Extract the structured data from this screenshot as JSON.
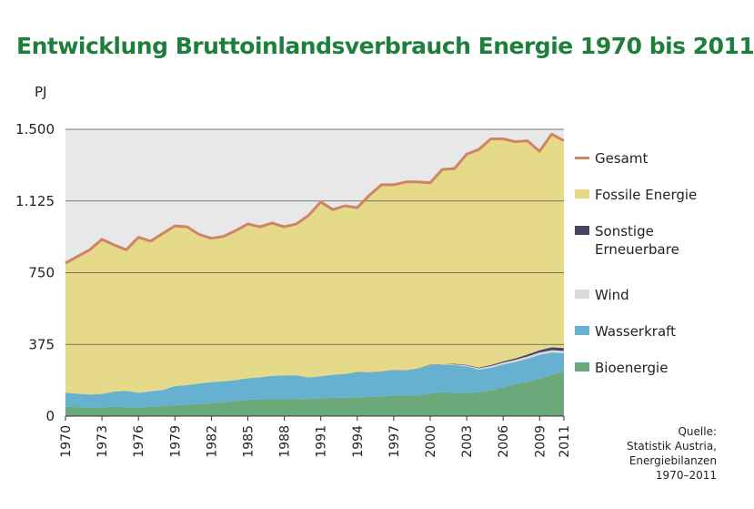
{
  "title": "Entwicklung Bruttoinlandsverbrauch Energie 1970 bis 2011",
  "source": {
    "lines": [
      "Quelle:",
      "Statistik Austria,",
      "Energiebilanzen",
      "1970–2011"
    ]
  },
  "colors": {
    "title": "#1e7f3c",
    "chart_bg": "#e8e8e8",
    "gridline": "#555555",
    "gesamt": "#d08466",
    "fossile": "#e5d98a",
    "sonstige": "#4b4469",
    "wind": "#d9d9d9",
    "wasserkraft": "#66b1cf",
    "bioenergie": "#6ba97a"
  },
  "chart_data": {
    "type": "area",
    "ylabel": "PJ",
    "xlabel": "",
    "ylim": [
      0,
      1500
    ],
    "yticks": [
      0,
      375,
      750,
      1125,
      1500
    ],
    "ytick_labels": [
      "0",
      "375",
      "750",
      "1.125",
      "1.500"
    ],
    "xtick_labels": [
      "1970",
      "1973",
      "1976",
      "1979",
      "1982",
      "1985",
      "1988",
      "1991",
      "1994",
      "1997",
      "2000",
      "2003",
      "2006",
      "2009",
      "2011"
    ],
    "grid": true,
    "legend_position": "right",
    "x": [
      1970,
      1971,
      1972,
      1973,
      1974,
      1975,
      1976,
      1977,
      1978,
      1979,
      1980,
      1981,
      1982,
      1983,
      1984,
      1985,
      1986,
      1987,
      1988,
      1989,
      1990,
      1991,
      1992,
      1993,
      1994,
      1995,
      1996,
      1997,
      1998,
      1999,
      2000,
      2001,
      2002,
      2003,
      2004,
      2005,
      2006,
      2007,
      2008,
      2009,
      2010,
      2011
    ],
    "stack_order": [
      "Bioenergie",
      "Wasserkraft",
      "Wind",
      "Sonstige Erneuerbare"
    ],
    "series": [
      {
        "name": "Bioenergie",
        "color_key": "bioenergie",
        "values": [
          48,
          47,
          45,
          46,
          48,
          47,
          44,
          48,
          52,
          57,
          60,
          63,
          68,
          72,
          80,
          86,
          88,
          88,
          88,
          88,
          90,
          93,
          96,
          96,
          98,
          100,
          103,
          108,
          108,
          108,
          118,
          125,
          122,
          120,
          125,
          135,
          150,
          165,
          180,
          195,
          215,
          235
        ]
      },
      {
        "name": "Wasserkraft",
        "color_key": "wasserkraft",
        "values": [
          75,
          70,
          68,
          70,
          80,
          85,
          78,
          82,
          85,
          100,
          102,
          108,
          110,
          110,
          108,
          112,
          115,
          122,
          125,
          125,
          112,
          115,
          120,
          125,
          132,
          128,
          130,
          132,
          130,
          138,
          148,
          142,
          145,
          140,
          118,
          118,
          120,
          118,
          120,
          125,
          118,
          95
        ]
      },
      {
        "name": "Wind",
        "color_key": "wind",
        "values": [
          0,
          0,
          0,
          0,
          0,
          0,
          0,
          0,
          0,
          0,
          0,
          0,
          0,
          0,
          0,
          0,
          0,
          0,
          0,
          0,
          0,
          0,
          0,
          0,
          0,
          0,
          0,
          0,
          0,
          1,
          2,
          3,
          4,
          5,
          7,
          9,
          10,
          11,
          12,
          13,
          12,
          11
        ]
      },
      {
        "name": "Sonstige Erneuerbare",
        "color_key": "sonstige",
        "values": [
          0,
          0,
          0,
          0,
          0,
          0,
          0,
          0,
          0,
          0,
          0,
          0,
          0,
          0,
          0,
          0,
          0,
          0,
          0,
          0,
          0,
          0,
          0,
          0,
          1,
          1,
          1,
          1,
          1,
          2,
          2,
          2,
          3,
          3,
          4,
          5,
          6,
          8,
          10,
          12,
          15,
          15
        ]
      },
      {
        "name": "Gesamt",
        "color_key": "gesamt",
        "kind": "line",
        "values": [
          800,
          835,
          870,
          925,
          895,
          870,
          935,
          915,
          955,
          995,
          990,
          950,
          930,
          940,
          970,
          1005,
          990,
          1010,
          990,
          1005,
          1050,
          1120,
          1080,
          1100,
          1090,
          1155,
          1210,
          1210,
          1225,
          1225,
          1220,
          1290,
          1295,
          1370,
          1395,
          1450,
          1450,
          1435,
          1440,
          1385,
          1475,
          1440
        ]
      },
      {
        "name": "Fossile Energie",
        "color_key": "fossile",
        "kind": "fill-to-total"
      }
    ]
  },
  "legend": {
    "items": [
      {
        "label": "Gesamt",
        "color_key": "gesamt",
        "kind": "line"
      },
      {
        "label": "Fossile Energie",
        "color_key": "fossile",
        "kind": "box"
      },
      {
        "label": "Sonstige\nErneuerbare",
        "color_key": "sonstige",
        "kind": "box"
      },
      {
        "label": "Wind",
        "color_key": "wind",
        "kind": "box"
      },
      {
        "label": "Wasserkraft",
        "color_key": "wasserkraft",
        "kind": "box"
      },
      {
        "label": "Bioenergie",
        "color_key": "bioenergie",
        "kind": "box"
      }
    ]
  }
}
